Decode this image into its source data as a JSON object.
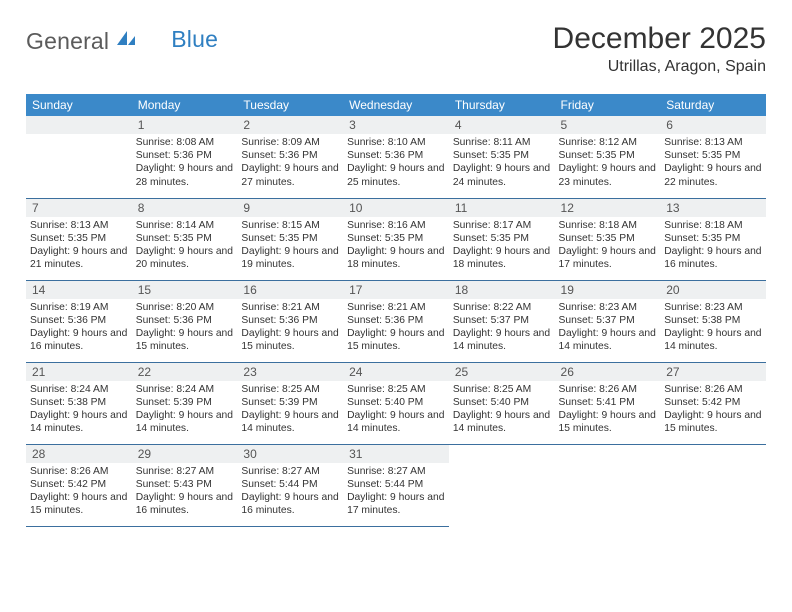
{
  "logo": {
    "part1": "General",
    "part2": "Blue",
    "icon_color": "#2f7fc1"
  },
  "title": "December 2025",
  "location": "Utrillas, Aragon, Spain",
  "colors": {
    "header_bg": "#3b89c9",
    "header_text": "#ffffff",
    "daynum_bg": "#eef0f1",
    "row_border": "#3b6f9e"
  },
  "day_headers": [
    "Sunday",
    "Monday",
    "Tuesday",
    "Wednesday",
    "Thursday",
    "Friday",
    "Saturday"
  ],
  "weeks": [
    [
      {
        "n": "",
        "sr": "",
        "ss": "",
        "dl": "",
        "blank_with_bar": true
      },
      {
        "n": "1",
        "sr": "8:08 AM",
        "ss": "5:36 PM",
        "dl": "9 hours and 28 minutes."
      },
      {
        "n": "2",
        "sr": "8:09 AM",
        "ss": "5:36 PM",
        "dl": "9 hours and 27 minutes."
      },
      {
        "n": "3",
        "sr": "8:10 AM",
        "ss": "5:36 PM",
        "dl": "9 hours and 25 minutes."
      },
      {
        "n": "4",
        "sr": "8:11 AM",
        "ss": "5:35 PM",
        "dl": "9 hours and 24 minutes."
      },
      {
        "n": "5",
        "sr": "8:12 AM",
        "ss": "5:35 PM",
        "dl": "9 hours and 23 minutes."
      },
      {
        "n": "6",
        "sr": "8:13 AM",
        "ss": "5:35 PM",
        "dl": "9 hours and 22 minutes."
      }
    ],
    [
      {
        "n": "7",
        "sr": "8:13 AM",
        "ss": "5:35 PM",
        "dl": "9 hours and 21 minutes."
      },
      {
        "n": "8",
        "sr": "8:14 AM",
        "ss": "5:35 PM",
        "dl": "9 hours and 20 minutes."
      },
      {
        "n": "9",
        "sr": "8:15 AM",
        "ss": "5:35 PM",
        "dl": "9 hours and 19 minutes."
      },
      {
        "n": "10",
        "sr": "8:16 AM",
        "ss": "5:35 PM",
        "dl": "9 hours and 18 minutes."
      },
      {
        "n": "11",
        "sr": "8:17 AM",
        "ss": "5:35 PM",
        "dl": "9 hours and 18 minutes."
      },
      {
        "n": "12",
        "sr": "8:18 AM",
        "ss": "5:35 PM",
        "dl": "9 hours and 17 minutes."
      },
      {
        "n": "13",
        "sr": "8:18 AM",
        "ss": "5:35 PM",
        "dl": "9 hours and 16 minutes."
      }
    ],
    [
      {
        "n": "14",
        "sr": "8:19 AM",
        "ss": "5:36 PM",
        "dl": "9 hours and 16 minutes."
      },
      {
        "n": "15",
        "sr": "8:20 AM",
        "ss": "5:36 PM",
        "dl": "9 hours and 15 minutes."
      },
      {
        "n": "16",
        "sr": "8:21 AM",
        "ss": "5:36 PM",
        "dl": "9 hours and 15 minutes."
      },
      {
        "n": "17",
        "sr": "8:21 AM",
        "ss": "5:36 PM",
        "dl": "9 hours and 15 minutes."
      },
      {
        "n": "18",
        "sr": "8:22 AM",
        "ss": "5:37 PM",
        "dl": "9 hours and 14 minutes."
      },
      {
        "n": "19",
        "sr": "8:23 AM",
        "ss": "5:37 PM",
        "dl": "9 hours and 14 minutes."
      },
      {
        "n": "20",
        "sr": "8:23 AM",
        "ss": "5:38 PM",
        "dl": "9 hours and 14 minutes."
      }
    ],
    [
      {
        "n": "21",
        "sr": "8:24 AM",
        "ss": "5:38 PM",
        "dl": "9 hours and 14 minutes."
      },
      {
        "n": "22",
        "sr": "8:24 AM",
        "ss": "5:39 PM",
        "dl": "9 hours and 14 minutes."
      },
      {
        "n": "23",
        "sr": "8:25 AM",
        "ss": "5:39 PM",
        "dl": "9 hours and 14 minutes."
      },
      {
        "n": "24",
        "sr": "8:25 AM",
        "ss": "5:40 PM",
        "dl": "9 hours and 14 minutes."
      },
      {
        "n": "25",
        "sr": "8:25 AM",
        "ss": "5:40 PM",
        "dl": "9 hours and 14 minutes."
      },
      {
        "n": "26",
        "sr": "8:26 AM",
        "ss": "5:41 PM",
        "dl": "9 hours and 15 minutes."
      },
      {
        "n": "27",
        "sr": "8:26 AM",
        "ss": "5:42 PM",
        "dl": "9 hours and 15 minutes."
      }
    ],
    [
      {
        "n": "28",
        "sr": "8:26 AM",
        "ss": "5:42 PM",
        "dl": "9 hours and 15 minutes."
      },
      {
        "n": "29",
        "sr": "8:27 AM",
        "ss": "5:43 PM",
        "dl": "9 hours and 16 minutes."
      },
      {
        "n": "30",
        "sr": "8:27 AM",
        "ss": "5:44 PM",
        "dl": "9 hours and 16 minutes."
      },
      {
        "n": "31",
        "sr": "8:27 AM",
        "ss": "5:44 PM",
        "dl": "9 hours and 17 minutes."
      },
      {
        "n": "",
        "sr": "",
        "ss": "",
        "dl": "",
        "blank": true
      },
      {
        "n": "",
        "sr": "",
        "ss": "",
        "dl": "",
        "blank": true
      },
      {
        "n": "",
        "sr": "",
        "ss": "",
        "dl": "",
        "blank": true
      }
    ]
  ],
  "labels": {
    "sunrise": "Sunrise:",
    "sunset": "Sunset:",
    "daylight": "Daylight:"
  }
}
